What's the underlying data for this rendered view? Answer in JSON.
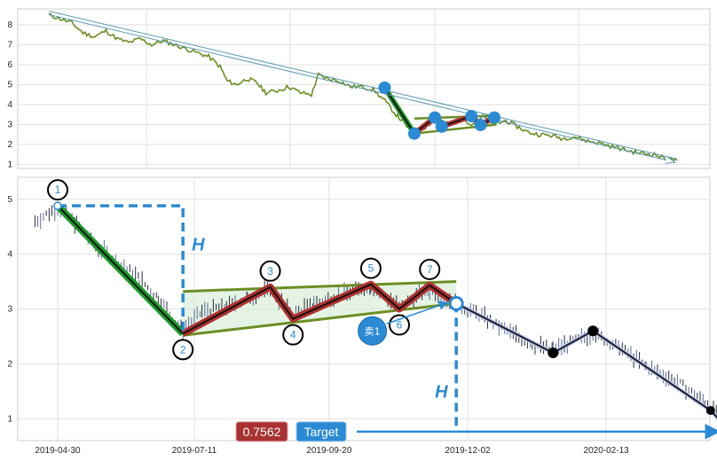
{
  "chart_data": [
    {
      "type": "line",
      "panel": "overview",
      "ylim": [
        0.8,
        8.8
      ],
      "yticks": [
        1,
        2,
        3,
        4,
        5,
        6,
        7,
        8
      ],
      "grid": true,
      "colors": {
        "price": "#6b8e23",
        "trend_arrow": "#5a9ab0",
        "markers": "#2a8ad4",
        "down_leg": "#1a9a2a",
        "up_legs": "#b03030"
      },
      "price_path": [
        [
          2018.85,
          8.5
        ],
        [
          2018.9,
          8.3
        ],
        [
          2018.95,
          8.1
        ],
        [
          2019.0,
          7.6
        ],
        [
          2019.05,
          7.4
        ],
        [
          2019.1,
          7.7
        ],
        [
          2019.15,
          7.3
        ],
        [
          2019.2,
          7.1
        ],
        [
          2019.25,
          7.3
        ],
        [
          2019.3,
          7.0
        ],
        [
          2019.35,
          7.2
        ],
        [
          2019.4,
          7.0
        ],
        [
          2019.45,
          6.8
        ],
        [
          2019.5,
          6.6
        ],
        [
          2019.55,
          6.4
        ],
        [
          2019.6,
          5.9
        ],
        [
          2019.63,
          5.2
        ],
        [
          2019.67,
          5.0
        ],
        [
          2019.72,
          5.3
        ],
        [
          2019.76,
          5.1
        ],
        [
          2019.8,
          4.6
        ],
        [
          2019.85,
          4.7
        ],
        [
          2019.9,
          4.9
        ],
        [
          2019.95,
          4.6
        ],
        [
          2020.0,
          4.5
        ],
        [
          2020.03,
          5.5
        ],
        [
          2020.07,
          5.3
        ],
        [
          2020.12,
          5.2
        ],
        [
          2020.17,
          4.9
        ],
        [
          2020.22,
          4.9
        ],
        [
          2020.27,
          4.75
        ],
        [
          2020.32,
          4.2
        ],
        [
          2020.37,
          3.5
        ],
        [
          2020.41,
          3.0
        ],
        [
          2020.45,
          2.55
        ],
        [
          2020.5,
          2.9
        ],
        [
          2020.55,
          3.3
        ],
        [
          2020.6,
          3.0
        ],
        [
          2020.65,
          3.35
        ],
        [
          2020.7,
          3.05
        ],
        [
          2020.75,
          3.4
        ],
        [
          2020.8,
          3.0
        ],
        [
          2020.85,
          3.2
        ],
        [
          2020.9,
          2.9
        ],
        [
          2020.95,
          2.6
        ],
        [
          2021.0,
          2.5
        ],
        [
          2021.05,
          2.45
        ],
        [
          2021.1,
          2.3
        ],
        [
          2021.15,
          2.4
        ],
        [
          2021.2,
          2.2
        ],
        [
          2021.25,
          2.1
        ],
        [
          2021.3,
          1.95
        ],
        [
          2021.35,
          1.8
        ],
        [
          2021.4,
          1.65
        ],
        [
          2021.45,
          1.55
        ],
        [
          2021.5,
          1.5
        ],
        [
          2021.55,
          1.3
        ],
        [
          2021.6,
          1.2
        ]
      ],
      "trend_arrow": [
        [
          2018.85,
          8.6
        ],
        [
          2021.6,
          1.2
        ]
      ],
      "pattern_points": [
        [
          2020.32,
          4.85
        ],
        [
          2020.45,
          2.55
        ],
        [
          2020.54,
          3.35
        ],
        [
          2020.57,
          2.9
        ],
        [
          2020.7,
          3.42
        ],
        [
          2020.74,
          2.98
        ],
        [
          2020.8,
          3.35
        ]
      ],
      "channel_lines": [
        [
          [
            2020.45,
            3.3
          ],
          [
            2020.81,
            3.45
          ]
        ],
        [
          [
            2020.45,
            2.55
          ],
          [
            2020.81,
            3.0
          ]
        ]
      ]
    },
    {
      "type": "candlestick",
      "panel": "detail",
      "ylim": [
        0.6,
        5.4
      ],
      "yticks": [
        1,
        2,
        3,
        4,
        5
      ],
      "x_tick_labels": [
        "2019-04-30",
        "2019-07-11",
        "2019-09-20",
        "2019-12-02",
        "2020-02-13"
      ],
      "grid": true,
      "colors": {
        "down_leg": "#1a9a2a",
        "up_legs": "#b03030",
        "channel": "#6b8e23",
        "projection": "#2a8ad4",
        "target_box": "#a83232",
        "label_box": "#2a8ad4",
        "post_path": "#1a1a2e"
      },
      "pattern_points": [
        {
          "label": "1",
          "date": "2019-04-30",
          "price": 4.88
        },
        {
          "label": "2",
          "date": "2019-07-05",
          "price": 2.55
        },
        {
          "label": "3",
          "date": "2019-08-20",
          "price": 3.4
        },
        {
          "label": "4",
          "date": "2019-09-01",
          "price": 2.82
        },
        {
          "label": "5",
          "date": "2019-10-12",
          "price": 3.45
        },
        {
          "label": "6",
          "date": "2019-10-27",
          "price": 3.0
        },
        {
          "label": "7",
          "date": "2019-11-12",
          "price": 3.43
        }
      ],
      "breakout": {
        "date": "2019-11-26",
        "price": 3.1
      },
      "sell_marker": {
        "label": "卖1",
        "date": "2019-10-24",
        "price": 2.6
      },
      "channel_upper": [
        [
          "2019-07-05",
          3.32
        ],
        [
          "2019-11-26",
          3.5
        ]
      ],
      "channel_lower": [
        [
          "2019-07-05",
          2.52
        ],
        [
          "2019-11-26",
          3.1
        ]
      ],
      "post_path": [
        [
          "2019-11-26",
          3.1
        ],
        [
          "2020-01-16",
          2.2
        ],
        [
          "2020-02-06",
          2.6
        ],
        [
          "2020-04-08",
          1.15
        ],
        [
          "2020-04-18",
          0.78
        ]
      ],
      "height_H": {
        "label": "H",
        "top": 4.88,
        "bottom": 2.55,
        "date": "2019-07-05"
      },
      "projection_H": {
        "label": "H",
        "top": 3.1,
        "bottom": 0.78,
        "date": "2019-11-26"
      },
      "target": {
        "value": "0.7562",
        "label": "Target",
        "price": 0.7562
      },
      "candle_path": [
        [
          "2019-04-18",
          4.6
        ],
        [
          "2019-04-30",
          4.85
        ],
        [
          "2019-05-10",
          4.55
        ],
        [
          "2019-05-20",
          4.15
        ],
        [
          "2019-06-01",
          3.85
        ],
        [
          "2019-06-12",
          3.55
        ],
        [
          "2019-06-22",
          3.2
        ],
        [
          "2019-07-05",
          2.6
        ],
        [
          "2019-07-15",
          2.95
        ],
        [
          "2019-07-28",
          3.05
        ],
        [
          "2019-08-08",
          3.2
        ],
        [
          "2019-08-20",
          3.35
        ],
        [
          "2019-09-01",
          2.9
        ],
        [
          "2019-09-12",
          3.1
        ],
        [
          "2019-09-25",
          3.25
        ],
        [
          "2019-10-12",
          3.4
        ],
        [
          "2019-10-27",
          3.05
        ],
        [
          "2019-11-12",
          3.35
        ],
        [
          "2019-11-26",
          3.1
        ],
        [
          "2019-12-08",
          2.9
        ],
        [
          "2019-12-20",
          2.65
        ],
        [
          "2020-01-05",
          2.35
        ],
        [
          "2020-01-16",
          2.25
        ],
        [
          "2020-02-06",
          2.55
        ],
        [
          "2020-02-20",
          2.3
        ],
        [
          "2020-03-05",
          1.95
        ],
        [
          "2020-03-20",
          1.7
        ],
        [
          "2020-04-05",
          1.3
        ],
        [
          "2020-04-12",
          1.1
        ]
      ]
    }
  ]
}
